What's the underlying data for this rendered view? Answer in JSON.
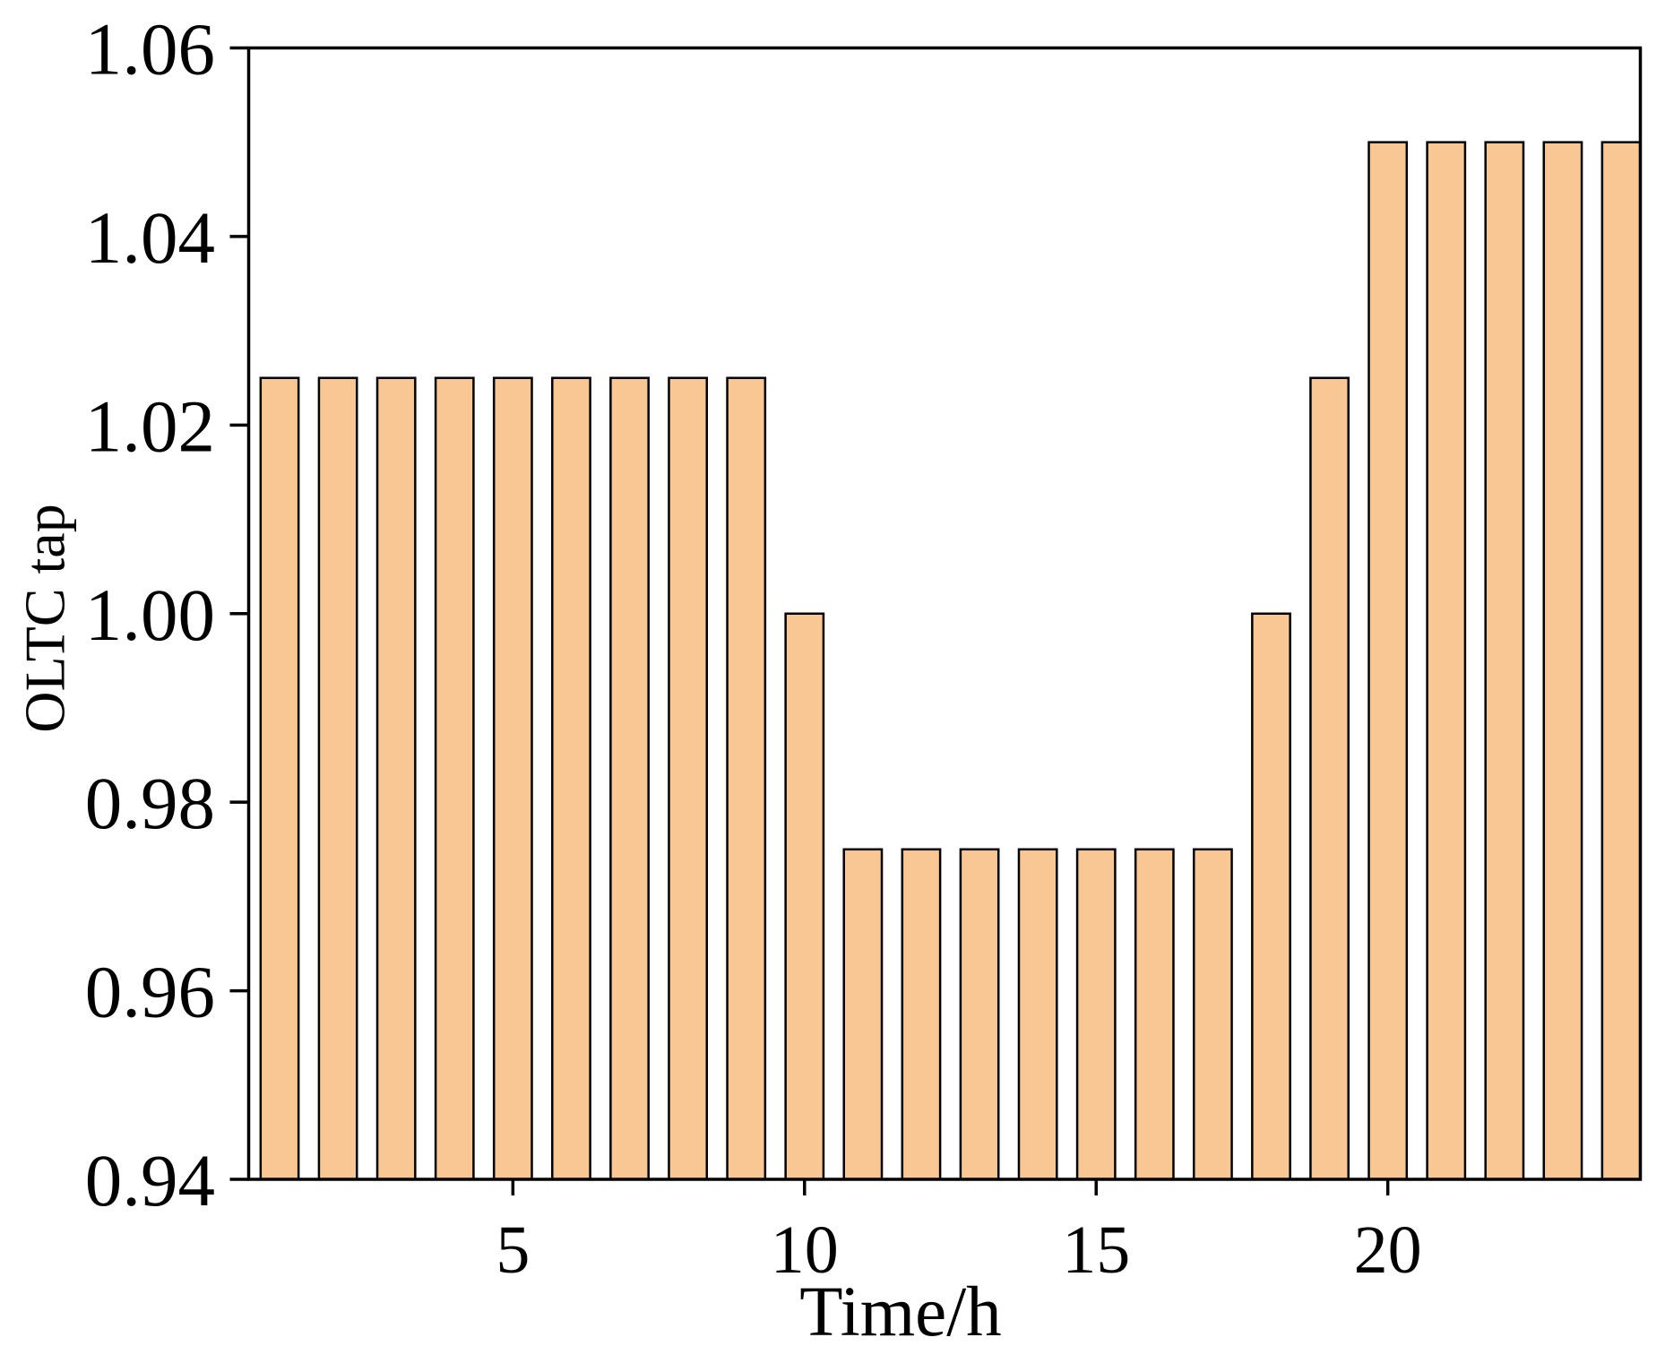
{
  "chart_data": {
    "type": "bar",
    "x": [
      1,
      2,
      3,
      4,
      5,
      6,
      7,
      8,
      9,
      10,
      11,
      12,
      13,
      14,
      15,
      16,
      17,
      18,
      19,
      20,
      21,
      22,
      23,
      24
    ],
    "values": [
      1.025,
      1.025,
      1.025,
      1.025,
      1.025,
      1.025,
      1.025,
      1.025,
      1.025,
      1.0,
      0.975,
      0.975,
      0.975,
      0.975,
      0.975,
      0.975,
      0.975,
      1.0,
      1.025,
      1.05,
      1.05,
      1.05,
      1.05,
      1.05
    ],
    "xlabel": "Time/h",
    "ylabel": "OLTC tap",
    "xlim": [
      0.47,
      24.33
    ],
    "ylim": [
      0.94,
      1.06
    ],
    "xticks": [
      5,
      10,
      15,
      20
    ],
    "xtick_labels": [
      "5",
      "10",
      "15",
      "20"
    ],
    "yticks": [
      0.94,
      0.96,
      0.98,
      1.0,
      1.02,
      1.04,
      1.06
    ],
    "ytick_labels": [
      "0.94",
      "0.96",
      "0.98",
      "1.00",
      "1.02",
      "1.04",
      "1.06"
    ],
    "grid": false,
    "show_legend": false,
    "colors": {
      "bar_fill": "#f9c794",
      "bar_edge": "#000000",
      "axis": "#000000"
    }
  }
}
